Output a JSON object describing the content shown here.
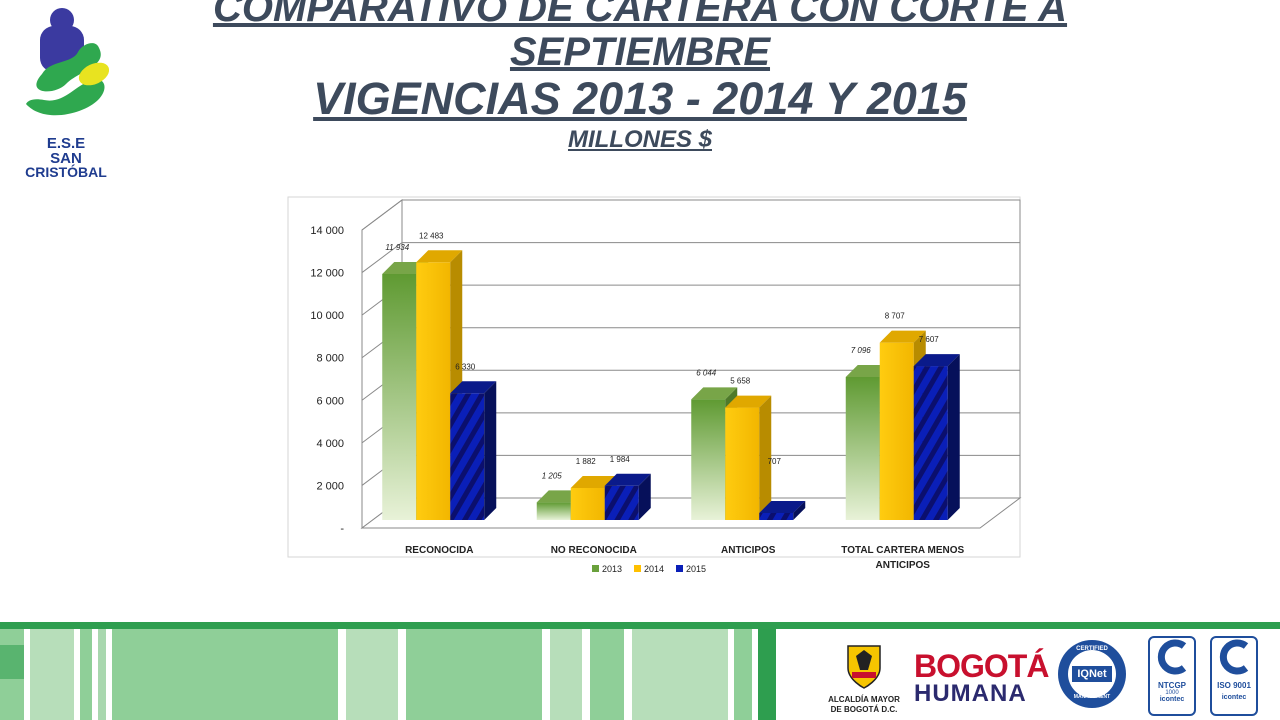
{
  "header": {
    "line1": "COMPARATIVO DE CARTERA CON CORTE A",
    "line2": "SEPTIEMBRE",
    "line3": "VIGENCIAS 2013 - 2014 Y 2015",
    "line4": "MILLONES $"
  },
  "logo": {
    "line1": "E.S.E",
    "line2": "SAN",
    "line3": "CRISTÓBAL"
  },
  "footer": {
    "alcaldia_line1": "ALCALDÍA MAYOR",
    "alcaldia_line2": "DE BOGOTÁ D.C.",
    "bogota_line1": "BOGOTÁ",
    "bogota_line2": "HUMANA",
    "iqnet_top": "CERTIFIED",
    "iqnet_center": "IQNet",
    "iqnet_bottom": "MANAGEMENT",
    "ntcgp_label": "NTCGP",
    "ntcgp_num": "1000",
    "iso_label": "ISO 9001",
    "icontec": "icontec"
  },
  "colors": {
    "title": "#3d4a5c",
    "green": "#8db55a",
    "yellow": "#ffc000",
    "blue": "#0a1fb8",
    "footer_green": "#2e9e4f",
    "footer_light": "#a8d7ae"
  },
  "chart_data": {
    "type": "bar",
    "title": "",
    "xlabel": "",
    "ylabel": "",
    "ylim": [
      0,
      14000
    ],
    "yticks": [
      "-",
      "2 000",
      "4 000",
      "6 000",
      "8 000",
      "10 000",
      "12 000",
      "14 000"
    ],
    "categories": [
      "RECONOCIDA",
      "NO RECONOCIDA",
      "ANTICIPOS",
      "TOTAL CARTERA MENOS ANTICIPOS"
    ],
    "series": [
      {
        "name": "2013",
        "values": [
          11934,
          1205,
          6044,
          7096
        ],
        "labels": [
          "11 934",
          "1 205",
          "6 044",
          "7 096"
        ]
      },
      {
        "name": "2014",
        "values": [
          12483,
          1882,
          5658,
          8707
        ],
        "labels": [
          "12 483",
          "1 882",
          "5 658",
          "8 707"
        ]
      },
      {
        "name": "2015",
        "values": [
          6330,
          1984,
          707,
          7607
        ],
        "labels": [
          "6 330",
          "1 984",
          "707",
          "7 607"
        ]
      }
    ],
    "legend_position": "bottom",
    "grid": true
  }
}
